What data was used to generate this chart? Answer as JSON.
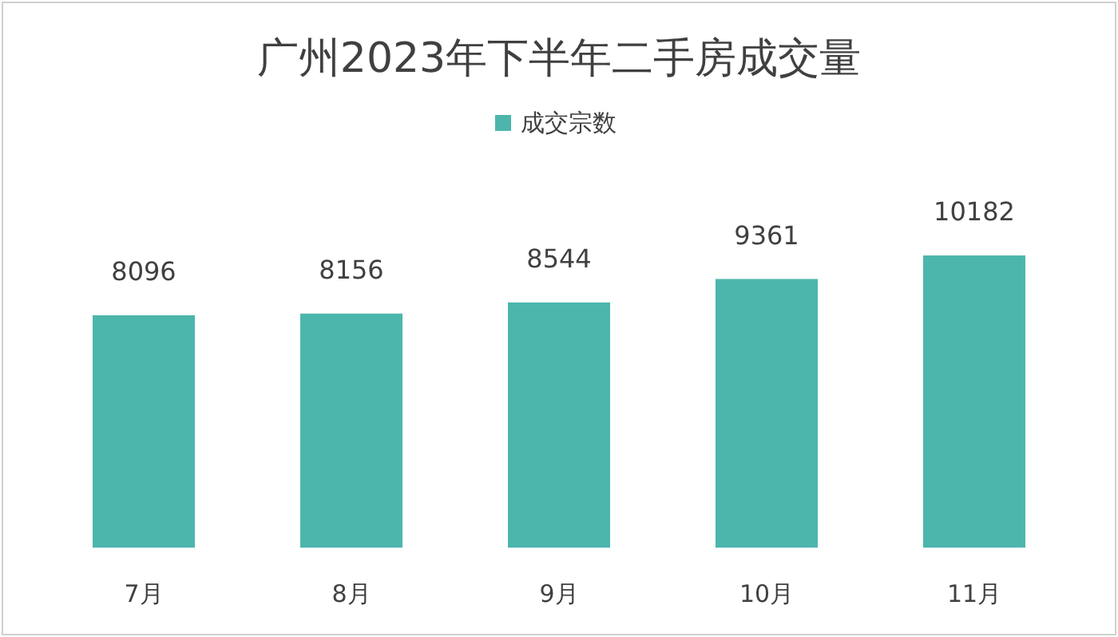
{
  "chart_data": {
    "type": "bar",
    "title": "广州2023年下半年二手房成交量",
    "categories": [
      "7月",
      "8月",
      "9月",
      "10月",
      "11月"
    ],
    "series": [
      {
        "name": "成交宗数",
        "color": "#4db6ac",
        "values": [
          8096,
          8156,
          8544,
          9361,
          10182
        ]
      }
    ],
    "data_labels": true,
    "legend": "top",
    "grid": false
  }
}
